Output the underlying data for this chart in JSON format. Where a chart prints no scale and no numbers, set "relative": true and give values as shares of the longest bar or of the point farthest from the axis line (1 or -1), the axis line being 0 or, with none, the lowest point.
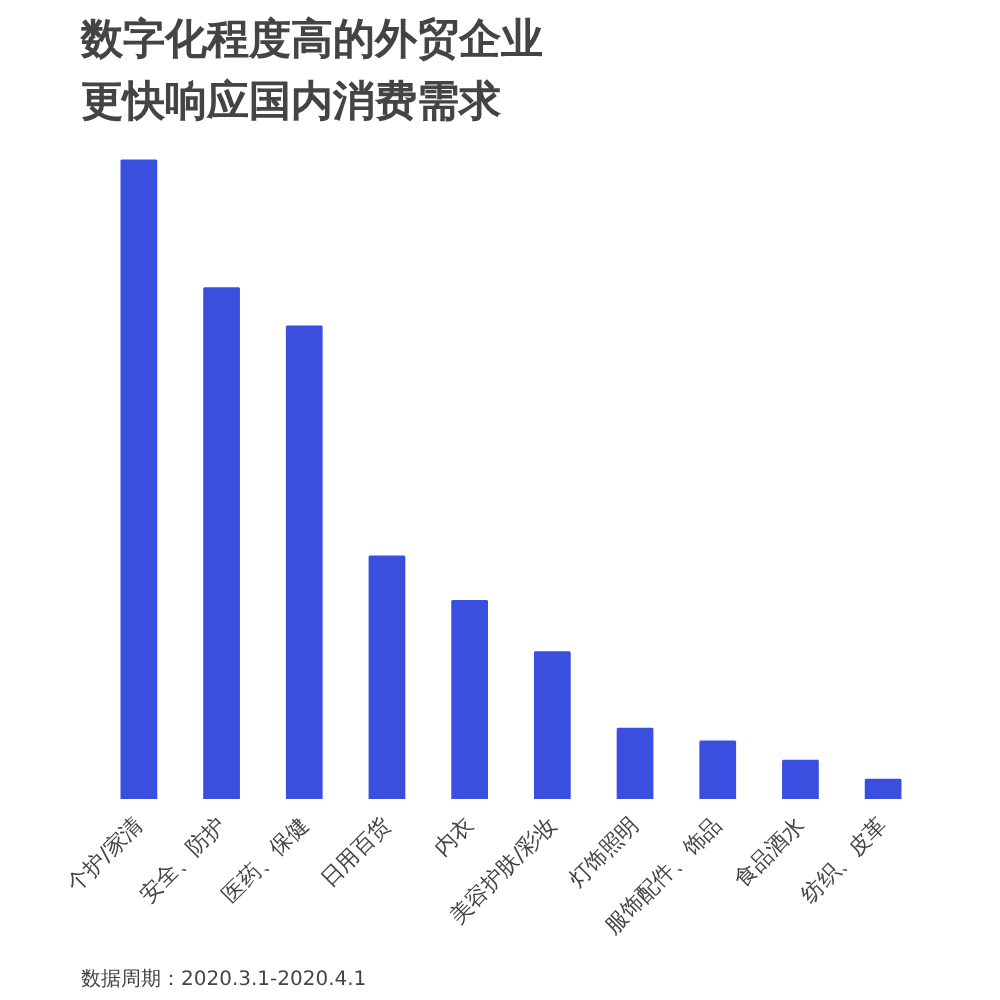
{
  "chart_data": {
    "type": "bar",
    "relative": true,
    "title": "数字化程度高的外贸企业更快响应国内消费需求",
    "categories": [
      "个护/家清",
      "安全、防护",
      "医药、保健",
      "日用百货",
      "内衣",
      "美容护肤/彩妆",
      "灯饰照明",
      "服饰配件、饰品",
      "食品酒水",
      "纺织、皮革"
    ],
    "values": [
      1,
      0.8,
      0.74,
      0.38,
      0.31,
      0.23,
      0.11,
      0.09,
      0.06,
      0.03
    ],
    "color": "#3a4fe0",
    "grid": false,
    "annotations": [
      "数据周期：2020.3.1-2020.4.1"
    ]
  }
}
